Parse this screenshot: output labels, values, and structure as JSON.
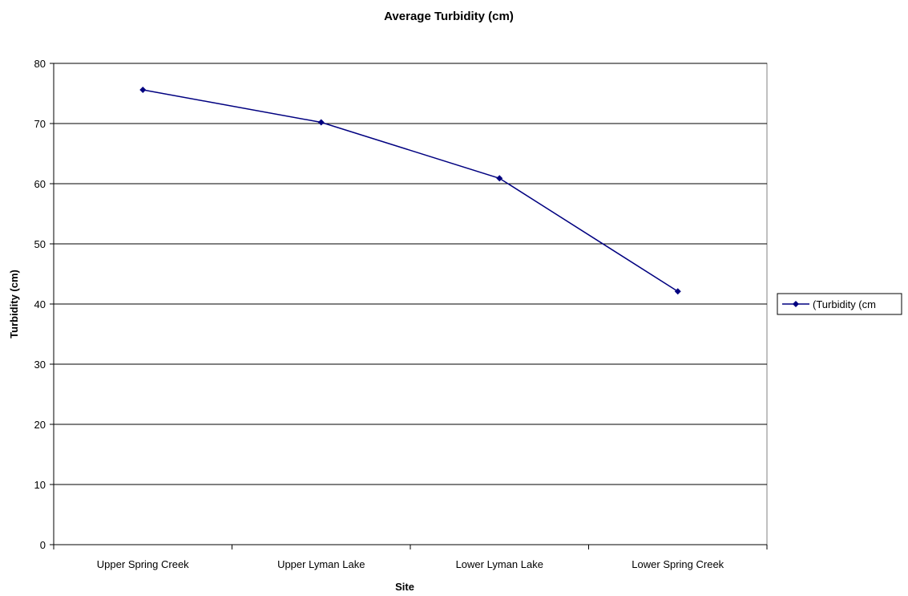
{
  "chart_data": {
    "type": "line",
    "title": "Average Turbidity (cm)",
    "xlabel": "Site",
    "ylabel": "Turbidity (cm)",
    "categories": [
      "Upper Spring Creek",
      "Upper Lyman Lake",
      "Lower Lyman Lake",
      "Lower Spring Creek"
    ],
    "series": [
      {
        "name": "(Turbidity (cm",
        "values": [
          75.6,
          70.2,
          60.9,
          42.1
        ],
        "color": "#000080",
        "marker": "diamond"
      }
    ],
    "ylim": [
      0,
      80
    ],
    "yticks": [
      0,
      10,
      20,
      30,
      40,
      50,
      60,
      70,
      80
    ],
    "grid": "horizontal",
    "legend_position": "right"
  }
}
